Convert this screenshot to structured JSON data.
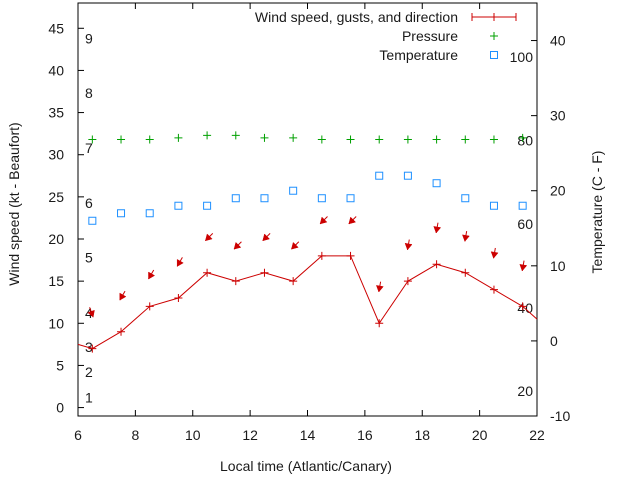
{
  "chart_data": {
    "type": "line",
    "xlabel": "Local time (Atlantic/Canary)",
    "ylabel_left": "Wind speed (kt - Beaufort)",
    "ylabel_right": "Temperature (C - F)",
    "xlim": [
      6,
      22
    ],
    "ylim_left": [
      -1,
      48
    ],
    "ylim_right": [
      -10,
      45
    ],
    "x_ticks": [
      "6",
      "8",
      "10",
      "12",
      "14",
      "16",
      "18",
      "20",
      "22"
    ],
    "y_left_ticks": [
      "0",
      "5",
      "10",
      "15",
      "20",
      "25",
      "30",
      "35",
      "40",
      "45"
    ],
    "y_right_ticks": [
      "-10",
      "0",
      "10",
      "20",
      "30",
      "40"
    ],
    "beaufort_labels": [
      {
        "text": "1",
        "y": 1.2
      },
      {
        "text": "2",
        "y": 4.2
      },
      {
        "text": "3",
        "y": 7.2
      },
      {
        "text": "4",
        "y": 11.2
      },
      {
        "text": "5",
        "y": 17.8
      },
      {
        "text": "6",
        "y": 24.3
      },
      {
        "text": "7",
        "y": 30.8
      },
      {
        "text": "8",
        "y": 37.3
      },
      {
        "text": "9",
        "y": 43.8
      }
    ],
    "fahrenheit_labels": [
      {
        "text": "20",
        "y": -6.7
      },
      {
        "text": "40",
        "y": 4.4
      },
      {
        "text": "60",
        "y": 15.6
      },
      {
        "text": "80",
        "y": 26.7
      },
      {
        "text": "100",
        "y": 37.8
      }
    ],
    "legend": [
      {
        "label": "Wind speed, gusts, and direction",
        "color": "#cc0000",
        "marker": "line-plus"
      },
      {
        "label": "Pressure",
        "color": "#00a000",
        "marker": "plus"
      },
      {
        "label": "Temperature",
        "color": "#1e90ff",
        "marker": "square"
      }
    ],
    "legend_position": "top-right",
    "series": [
      {
        "name": "Wind speed, gusts, and direction",
        "axis": "left",
        "color": "#cc0000",
        "x": [
          6.0,
          6.5,
          7.5,
          8.5,
          9.5,
          10.5,
          11.5,
          12.5,
          13.5,
          14.5,
          15.5,
          16.5,
          17.5,
          18.5,
          19.5,
          20.5,
          21.5,
          22.0
        ],
        "y": [
          7.5,
          7,
          9,
          12,
          13,
          16,
          15,
          16,
          15,
          18,
          18,
          10,
          15,
          17,
          16,
          14,
          12,
          10.5
        ]
      },
      {
        "name": "Pressure",
        "axis": "left",
        "color": "#00a000",
        "x": [
          6.5,
          7.5,
          8.5,
          9.5,
          10.5,
          11.5,
          12.5,
          13.5,
          14.5,
          15.5,
          16.5,
          17.5,
          18.5,
          19.5,
          20.5,
          21.5
        ],
        "y": [
          31.8,
          31.8,
          31.8,
          32.0,
          32.3,
          32.3,
          32.0,
          32.0,
          31.8,
          31.8,
          31.8,
          31.8,
          31.8,
          31.8,
          31.8,
          32.0
        ]
      },
      {
        "name": "Temperature",
        "axis": "right",
        "color": "#1e90ff",
        "x": [
          6.5,
          7.5,
          8.5,
          9.5,
          10.5,
          11.5,
          12.5,
          13.5,
          14.5,
          15.5,
          16.5,
          17.5,
          18.5,
          19.5,
          20.5,
          21.5
        ],
        "y": [
          16,
          17,
          17,
          18,
          18,
          19,
          19,
          20,
          19,
          19,
          22,
          22,
          21,
          19,
          18,
          18
        ]
      }
    ],
    "direction_arrows": {
      "color": "#cc0000",
      "x": [
        6.5,
        7.5,
        8.5,
        9.5,
        10.5,
        11.5,
        12.5,
        13.5,
        14.5,
        15.5,
        16.5,
        17.5,
        18.5,
        19.5,
        20.5,
        21.5
      ],
      "y": [
        11,
        13,
        15.5,
        17,
        20,
        19,
        20,
        19,
        22,
        22,
        14,
        19,
        21,
        20,
        18,
        16.5
      ],
      "direction_deg": [
        340,
        30,
        30,
        30,
        45,
        45,
        45,
        45,
        45,
        45,
        10,
        10,
        10,
        10,
        10,
        10
      ]
    }
  }
}
